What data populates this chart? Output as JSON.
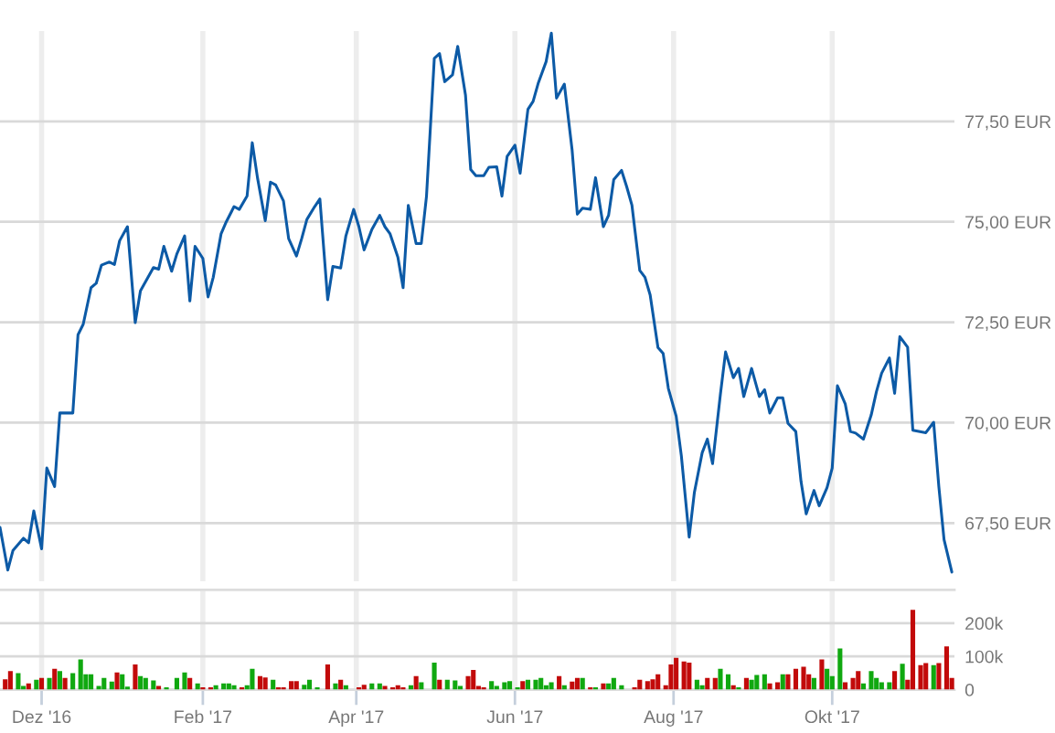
{
  "chart_data": [
    {
      "type": "line",
      "tick_labels": "y",
      "grid": true,
      "xlim": [
        "2016-11-15",
        "2017-11-17"
      ],
      "xticks": [
        {
          "value": "2016-12-01",
          "label": null
        },
        {
          "value": "2017-02-01",
          "label": null
        },
        {
          "value": "2017-04-01",
          "label": null
        },
        {
          "value": "2017-06-01",
          "label": null
        },
        {
          "value": "2017-08-01",
          "label": null
        },
        {
          "value": "2017-10-01",
          "label": null
        }
      ],
      "ylim": [
        66.05,
        79.75
      ],
      "yticks": [
        {
          "value": 67.5,
          "label": "67,50 EUR"
        },
        {
          "value": 70,
          "label": "70,00 EUR"
        },
        {
          "value": 72.5,
          "label": "72,50 EUR"
        },
        {
          "value": 75,
          "label": "75,00 EUR"
        },
        {
          "value": 77.5,
          "label": "77,50 EUR"
        }
      ],
      "x": [
        "2016-11-15",
        "2016-11-18",
        "2016-11-20",
        "2016-11-24",
        "2016-11-26",
        "2016-11-28",
        "2016-12-01",
        "2016-12-03",
        "2016-12-06",
        "2016-12-08",
        "2016-12-13",
        "2016-12-15",
        "2016-12-17",
        "2016-12-20",
        "2016-12-22",
        "2016-12-24",
        "2016-12-27",
        "2016-12-29",
        "2016-12-31",
        "2017-01-03",
        "2017-01-06",
        "2017-01-08",
        "2017-01-13",
        "2017-01-15",
        "2017-01-17",
        "2017-01-20",
        "2017-01-22",
        "2017-01-25",
        "2017-01-27",
        "2017-01-29",
        "2017-02-01",
        "2017-02-03",
        "2017-02-05",
        "2017-02-08",
        "2017-02-10",
        "2017-02-13",
        "2017-02-15",
        "2017-02-18",
        "2017-02-20",
        "2017-02-22",
        "2017-02-25",
        "2017-02-27",
        "2017-03-01",
        "2017-03-04",
        "2017-03-06",
        "2017-03-09",
        "2017-03-11",
        "2017-03-13",
        "2017-03-16",
        "2017-03-18",
        "2017-03-21",
        "2017-03-23",
        "2017-03-26",
        "2017-03-28",
        "2017-03-31",
        "2017-04-02",
        "2017-04-04",
        "2017-04-07",
        "2017-04-10",
        "2017-04-12",
        "2017-04-14",
        "2017-04-17",
        "2017-04-19",
        "2017-04-21",
        "2017-04-24",
        "2017-04-26",
        "2017-04-28",
        "2017-05-01",
        "2017-05-03",
        "2017-05-05",
        "2017-05-08",
        "2017-05-10",
        "2017-05-13",
        "2017-05-15",
        "2017-05-17",
        "2017-05-20",
        "2017-05-22",
        "2017-05-25",
        "2017-05-27",
        "2017-05-29",
        "2017-06-01",
        "2017-06-03",
        "2017-06-06",
        "2017-06-08",
        "2017-06-10",
        "2017-06-13",
        "2017-06-15",
        "2017-06-17",
        "2017-06-20",
        "2017-06-23",
        "2017-06-25",
        "2017-06-27",
        "2017-06-30",
        "2017-07-02",
        "2017-07-05",
        "2017-07-07",
        "2017-07-09",
        "2017-07-12",
        "2017-07-14",
        "2017-07-16",
        "2017-07-19",
        "2017-07-21",
        "2017-07-23",
        "2017-07-26",
        "2017-07-28",
        "2017-07-30",
        "2017-08-02",
        "2017-08-04",
        "2017-08-07",
        "2017-08-09",
        "2017-08-12",
        "2017-08-14",
        "2017-08-16",
        "2017-08-19",
        "2017-08-21",
        "2017-08-24",
        "2017-08-26",
        "2017-08-28",
        "2017-08-31",
        "2017-09-03",
        "2017-09-05",
        "2017-09-07",
        "2017-09-10",
        "2017-09-12",
        "2017-09-14",
        "2017-09-17",
        "2017-09-19",
        "2017-09-21",
        "2017-09-24",
        "2017-09-26",
        "2017-09-29",
        "2017-10-01",
        "2017-10-03",
        "2017-10-06",
        "2017-10-08",
        "2017-10-10",
        "2017-10-13",
        "2017-10-16",
        "2017-10-18",
        "2017-10-20",
        "2017-10-23",
        "2017-10-25",
        "2017-10-27",
        "2017-10-30",
        "2017-11-01",
        "2017-11-06",
        "2017-11-09",
        "2017-11-11",
        "2017-11-13",
        "2017-11-16"
      ],
      "series": [
        {
          "color": "#0c5aa6",
          "values": [
            67.39,
            66.33,
            66.82,
            67.12,
            67.01,
            67.8,
            66.86,
            68.87,
            68.41,
            70.24,
            70.24,
            72.19,
            72.45,
            73.36,
            73.47,
            73.92,
            74.0,
            73.94,
            74.53,
            74.88,
            72.49,
            73.28,
            73.86,
            73.82,
            74.39,
            73.77,
            74.2,
            74.65,
            73.03,
            74.39,
            74.09,
            73.13,
            73.62,
            74.7,
            75.0,
            75.38,
            75.31,
            75.64,
            76.97,
            76.1,
            75.03,
            75.99,
            75.92,
            75.52,
            74.58,
            74.15,
            74.58,
            75.06,
            75.38,
            75.57,
            73.06,
            73.89,
            73.85,
            74.65,
            75.31,
            74.88,
            74.3,
            74.81,
            75.16,
            74.88,
            74.7,
            74.12,
            73.36,
            75.41,
            74.46,
            74.46,
            75.64,
            79.07,
            79.19,
            78.49,
            78.66,
            79.37,
            78.15,
            76.3,
            76.15,
            76.15,
            76.36,
            76.37,
            75.64,
            76.63,
            76.91,
            76.21,
            77.8,
            78.0,
            78.46,
            78.99,
            79.7,
            78.08,
            78.43,
            76.78,
            75.19,
            75.34,
            75.31,
            76.1,
            74.88,
            75.16,
            76.05,
            76.28,
            75.87,
            75.41,
            73.79,
            73.62,
            73.18,
            71.87,
            71.72,
            70.85,
            70.16,
            69.17,
            67.15,
            68.26,
            69.25,
            69.59,
            68.98,
            70.7,
            71.76,
            71.12,
            71.35,
            70.65,
            71.35,
            70.65,
            70.82,
            70.24,
            70.62,
            70.62,
            69.98,
            69.78,
            68.54,
            67.73,
            68.31,
            67.93,
            68.38,
            68.87,
            70.92,
            70.47,
            69.78,
            69.74,
            69.59,
            70.19,
            70.77,
            71.23,
            71.61,
            70.73,
            72.14,
            71.88,
            69.81,
            69.75,
            70.01,
            68.41,
            67.09,
            66.28
          ]
        }
      ]
    },
    {
      "type": "bar",
      "grid": true,
      "xlim": [
        "2016-11-15",
        "2017-11-17"
      ],
      "xticks": [
        {
          "value": "2016-12-01",
          "label": "Dez '16"
        },
        {
          "value": "2017-02-01",
          "label": "Feb '17"
        },
        {
          "value": "2017-04-01",
          "label": "Apr '17"
        },
        {
          "value": "2017-06-01",
          "label": "Jun '17"
        },
        {
          "value": "2017-08-01",
          "label": "Aug '17"
        },
        {
          "value": "2017-10-01",
          "label": "Okt '17"
        }
      ],
      "ylim": [
        0,
        300000
      ],
      "yticks": [
        0,
        {
          "value": 100000,
          "label": "100k"
        },
        {
          "value": 200000,
          "label": "200k"
        }
      ],
      "series": [
        {
          "color": "#c20a0a",
          "x": [
            "2016-11-17",
            "2016-11-19",
            "2016-11-26",
            "2016-12-01",
            "2016-12-06",
            "2016-12-10",
            "2016-12-30",
            "2017-01-06",
            "2017-01-15",
            "2017-01-27",
            "2017-02-01",
            "2017-02-04",
            "2017-02-16",
            "2017-02-23",
            "2017-02-25",
            "2017-03-02",
            "2017-03-04",
            "2017-03-07",
            "2017-03-09",
            "2017-03-21",
            "2017-03-26",
            "2017-04-02",
            "2017-04-04",
            "2017-04-12",
            "2017-04-15",
            "2017-04-17",
            "2017-04-19",
            "2017-04-24",
            "2017-05-03",
            "2017-05-14",
            "2017-05-16",
            "2017-05-18",
            "2017-05-20",
            "2017-06-04",
            "2017-06-18",
            "2017-06-23",
            "2017-06-25",
            "2017-06-30",
            "2017-07-05",
            "2017-07-17",
            "2017-07-19",
            "2017-07-22",
            "2017-07-24",
            "2017-07-26",
            "2017-07-29",
            "2017-07-31",
            "2017-08-02",
            "2017-08-05",
            "2017-08-07",
            "2017-08-14",
            "2017-08-17",
            "2017-08-24",
            "2017-08-29",
            "2017-09-07",
            "2017-09-10",
            "2017-09-14",
            "2017-09-17",
            "2017-09-20",
            "2017-09-22",
            "2017-09-27",
            "2017-10-06",
            "2017-10-09",
            "2017-10-11",
            "2017-10-25",
            "2017-10-30",
            "2017-11-01",
            "2017-11-04",
            "2017-11-06",
            "2017-11-11",
            "2017-11-14",
            "2017-11-16"
          ],
          "values": [
            31000,
            56000,
            19000,
            35000,
            63000,
            35000,
            52000,
            76000,
            11000,
            35000,
            7000,
            7000,
            7000,
            41000,
            37000,
            7000,
            7000,
            26000,
            26000,
            76000,
            30000,
            7000,
            15000,
            11000,
            7000,
            13000,
            7000,
            41000,
            30000,
            41000,
            59000,
            11000,
            7000,
            26000,
            41000,
            24000,
            35000,
            7000,
            19000,
            7000,
            30000,
            26000,
            31000,
            46000,
            13000,
            76000,
            96000,
            85000,
            81000,
            35000,
            35000,
            13000,
            35000,
            19000,
            22000,
            46000,
            63000,
            69000,
            46000,
            91000,
            22000,
            35000,
            56000,
            56000,
            30000,
            240000,
            74000,
            80000,
            80000,
            130000,
            35000
          ]
        },
        {
          "color": "#10a810",
          "x": [
            "2016-11-22",
            "2016-11-24",
            "2016-11-29",
            "2016-12-04",
            "2016-12-08",
            "2016-12-13",
            "2016-12-16",
            "2016-12-18",
            "2016-12-20",
            "2016-12-23",
            "2016-12-25",
            "2016-12-28",
            "2017-01-01",
            "2017-01-03",
            "2017-01-08",
            "2017-01-10",
            "2017-01-13",
            "2017-01-18",
            "2017-01-22",
            "2017-01-25",
            "2017-01-30",
            "2017-02-06",
            "2017-02-09",
            "2017-02-11",
            "2017-02-13",
            "2017-02-18",
            "2017-02-20",
            "2017-02-28",
            "2017-03-12",
            "2017-03-14",
            "2017-03-17",
            "2017-03-24",
            "2017-03-28",
            "2017-04-07",
            "2017-04-10",
            "2017-04-22",
            "2017-04-26",
            "2017-05-01",
            "2017-05-06",
            "2017-05-09",
            "2017-05-11",
            "2017-05-23",
            "2017-05-25",
            "2017-05-28",
            "2017-05-30",
            "2017-06-02",
            "2017-06-06",
            "2017-06-09",
            "2017-06-11",
            "2017-06-13",
            "2017-06-15",
            "2017-06-20",
            "2017-06-27",
            "2017-07-02",
            "2017-07-07",
            "2017-07-09",
            "2017-07-12",
            "2017-08-10",
            "2017-08-12",
            "2017-08-19",
            "2017-08-22",
            "2017-08-26",
            "2017-08-31",
            "2017-09-02",
            "2017-09-05",
            "2017-09-12",
            "2017-09-24",
            "2017-09-29",
            "2017-10-01",
            "2017-10-04",
            "2017-10-13",
            "2017-10-16",
            "2017-10-18",
            "2017-10-20",
            "2017-10-23",
            "2017-10-28",
            "2017-11-09"
          ],
          "values": [
            50000,
            11000,
            30000,
            35000,
            56000,
            50000,
            91000,
            46000,
            46000,
            11000,
            35000,
            24000,
            46000,
            9000,
            41000,
            35000,
            28000,
            7000,
            35000,
            52000,
            19000,
            13000,
            19000,
            19000,
            13000,
            13000,
            63000,
            30000,
            15000,
            30000,
            7000,
            19000,
            13000,
            19000,
            19000,
            13000,
            22000,
            81000,
            30000,
            28000,
            11000,
            26000,
            11000,
            22000,
            26000,
            7000,
            30000,
            30000,
            35000,
            13000,
            22000,
            13000,
            35000,
            7000,
            19000,
            35000,
            13000,
            30000,
            13000,
            63000,
            46000,
            7000,
            30000,
            44000,
            46000,
            46000,
            35000,
            63000,
            41000,
            124000,
            19000,
            56000,
            35000,
            22000,
            22000,
            78000,
            74000
          ]
        }
      ]
    }
  ]
}
